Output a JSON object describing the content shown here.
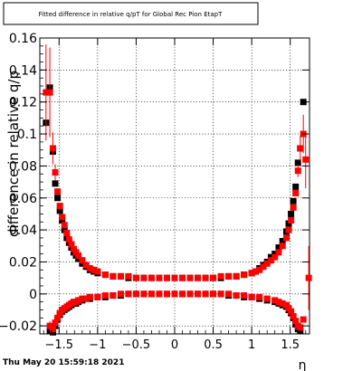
{
  "header": {
    "title": "Fitted difference in relative q/pT for Global Rec Pion EtapT"
  },
  "footer": {
    "timestamp": "Thu May 20 15:59:18 2021"
  },
  "chart_data": {
    "type": "scatter",
    "title": "Fitted difference in relative q/pT for Global Rec Pion EtapT",
    "xlabel": "η",
    "ylabel": "difference in relative q/p",
    "xlim": [
      -1.75,
      1.75
    ],
    "ylim": [
      -0.025,
      0.16
    ],
    "grid": true,
    "x_ticks": [
      {
        "value": -1.5,
        "label": "−1.5"
      },
      {
        "value": -1.0,
        "label": "−1"
      },
      {
        "value": -0.5,
        "label": "−0.5"
      },
      {
        "value": 0.0,
        "label": "0"
      },
      {
        "value": 0.5,
        "label": "0.5"
      },
      {
        "value": 1.0,
        "label": "1"
      },
      {
        "value": 1.5,
        "label": "1.5"
      }
    ],
    "y_ticks": [
      {
        "value": -0.02,
        "label": "−0.02"
      },
      {
        "value": 0.0,
        "label": "0"
      },
      {
        "value": 0.02,
        "label": "0.02"
      },
      {
        "value": 0.04,
        "label": "0.04"
      },
      {
        "value": 0.06,
        "label": "0.06"
      },
      {
        "value": 0.08,
        "label": "0.08"
      },
      {
        "value": 0.1,
        "label": "0.1"
      },
      {
        "value": 0.12,
        "label": "0.12"
      },
      {
        "value": 0.14,
        "label": "0.14"
      },
      {
        "value": 0.16,
        "label": "0.16"
      }
    ],
    "series": [
      {
        "color": "#000000",
        "points": [
          {
            "x": -1.67,
            "y": 0.107
          },
          {
            "x": -1.62,
            "y": 0.129
          },
          {
            "x": -1.58,
            "y": 0.089
          },
          {
            "x": -1.55,
            "y": 0.069
          },
          {
            "x": -1.52,
            "y": 0.06
          },
          {
            "x": -1.49,
            "y": 0.052
          },
          {
            "x": -1.46,
            "y": 0.046
          },
          {
            "x": -1.43,
            "y": 0.04
          },
          {
            "x": -1.4,
            "y": 0.035
          },
          {
            "x": -1.37,
            "y": 0.032
          },
          {
            "x": -1.34,
            "y": 0.029
          },
          {
            "x": -1.31,
            "y": 0.026
          },
          {
            "x": -1.28,
            "y": 0.024
          },
          {
            "x": -1.25,
            "y": 0.022
          },
          {
            "x": -1.2,
            "y": 0.019
          },
          {
            "x": -1.15,
            "y": 0.017
          },
          {
            "x": -1.1,
            "y": 0.015
          },
          {
            "x": -1.05,
            "y": 0.014
          },
          {
            "x": -1.0,
            "y": 0.013
          },
          {
            "x": -0.9,
            "y": 0.012
          },
          {
            "x": -0.8,
            "y": 0.011
          },
          {
            "x": -0.7,
            "y": 0.011
          },
          {
            "x": -0.6,
            "y": 0.01
          },
          {
            "x": -0.5,
            "y": 0.01
          },
          {
            "x": -0.4,
            "y": 0.01
          },
          {
            "x": -0.3,
            "y": 0.01
          },
          {
            "x": -0.2,
            "y": 0.01
          },
          {
            "x": -0.1,
            "y": 0.01
          },
          {
            "x": 0.0,
            "y": 0.01
          },
          {
            "x": 0.1,
            "y": 0.01
          },
          {
            "x": 0.2,
            "y": 0.01
          },
          {
            "x": 0.3,
            "y": 0.01
          },
          {
            "x": 0.4,
            "y": 0.01
          },
          {
            "x": 0.5,
            "y": 0.01
          },
          {
            "x": 0.6,
            "y": 0.01
          },
          {
            "x": 0.7,
            "y": 0.011
          },
          {
            "x": 0.8,
            "y": 0.011
          },
          {
            "x": 0.9,
            "y": 0.012
          },
          {
            "x": 1.0,
            "y": 0.013
          },
          {
            "x": 1.05,
            "y": 0.014
          },
          {
            "x": 1.1,
            "y": 0.016
          },
          {
            "x": 1.15,
            "y": 0.018
          },
          {
            "x": 1.2,
            "y": 0.02
          },
          {
            "x": 1.25,
            "y": 0.023
          },
          {
            "x": 1.3,
            "y": 0.025
          },
          {
            "x": 1.35,
            "y": 0.029
          },
          {
            "x": 1.4,
            "y": 0.033
          },
          {
            "x": 1.45,
            "y": 0.039
          },
          {
            "x": 1.48,
            "y": 0.044
          },
          {
            "x": 1.51,
            "y": 0.05
          },
          {
            "x": 1.54,
            "y": 0.058
          },
          {
            "x": 1.57,
            "y": 0.067
          },
          {
            "x": 1.6,
            "y": 0.082
          },
          {
            "x": 1.63,
            "y": 0.091
          },
          {
            "x": 1.67,
            "y": 0.12
          },
          {
            "x": -1.62,
            "y": -0.023
          },
          {
            "x": -1.58,
            "y": -0.024
          },
          {
            "x": -1.55,
            "y": -0.02
          },
          {
            "x": -1.52,
            "y": -0.016
          },
          {
            "x": -1.49,
            "y": -0.013
          },
          {
            "x": -1.46,
            "y": -0.011
          },
          {
            "x": -1.43,
            "y": -0.01
          },
          {
            "x": -1.4,
            "y": -0.009
          },
          {
            "x": -1.37,
            "y": -0.008
          },
          {
            "x": -1.34,
            "y": -0.007
          },
          {
            "x": -1.31,
            "y": -0.006
          },
          {
            "x": -1.28,
            "y": -0.006
          },
          {
            "x": -1.25,
            "y": -0.005
          },
          {
            "x": -1.2,
            "y": -0.004
          },
          {
            "x": -1.15,
            "y": -0.003
          },
          {
            "x": -1.1,
            "y": -0.003
          },
          {
            "x": -1.0,
            "y": -0.002
          },
          {
            "x": -0.9,
            "y": -0.002
          },
          {
            "x": -0.8,
            "y": -0.001
          },
          {
            "x": -0.7,
            "y": -0.001
          },
          {
            "x": -0.6,
            "y": 0.0
          },
          {
            "x": -0.5,
            "y": 0.0
          },
          {
            "x": -0.4,
            "y": 0.0
          },
          {
            "x": -0.3,
            "y": 0.0
          },
          {
            "x": -0.2,
            "y": 0.0
          },
          {
            "x": -0.1,
            "y": 0.0
          },
          {
            "x": 0.0,
            "y": 0.0
          },
          {
            "x": 0.1,
            "y": 0.0
          },
          {
            "x": 0.2,
            "y": 0.0
          },
          {
            "x": 0.3,
            "y": 0.0
          },
          {
            "x": 0.4,
            "y": 0.0
          },
          {
            "x": 0.5,
            "y": 0.0
          },
          {
            "x": 0.6,
            "y": 0.0
          },
          {
            "x": 0.7,
            "y": -0.001
          },
          {
            "x": 0.8,
            "y": -0.001
          },
          {
            "x": 0.9,
            "y": -0.002
          },
          {
            "x": 1.0,
            "y": -0.002
          },
          {
            "x": 1.1,
            "y": -0.003
          },
          {
            "x": 1.2,
            "y": -0.004
          },
          {
            "x": 1.3,
            "y": -0.005
          },
          {
            "x": 1.35,
            "y": -0.006
          },
          {
            "x": 1.4,
            "y": -0.007
          },
          {
            "x": 1.45,
            "y": -0.008
          },
          {
            "x": 1.48,
            "y": -0.01
          },
          {
            "x": 1.51,
            "y": -0.012
          },
          {
            "x": 1.54,
            "y": -0.015
          },
          {
            "x": 1.57,
            "y": -0.019
          },
          {
            "x": 1.6,
            "y": -0.022
          },
          {
            "x": 1.63,
            "y": -0.023
          }
        ]
      },
      {
        "color": "#ff0000",
        "points": [
          {
            "x": -1.67,
            "y": 0.126,
            "err": 0.03
          },
          {
            "x": -1.62,
            "y": 0.126,
            "err": 0.028
          },
          {
            "x": -1.58,
            "y": 0.091,
            "err": 0.01
          },
          {
            "x": -1.55,
            "y": 0.076,
            "err": 0.005
          },
          {
            "x": -1.52,
            "y": 0.064
          },
          {
            "x": -1.49,
            "y": 0.055
          },
          {
            "x": -1.46,
            "y": 0.048
          },
          {
            "x": -1.43,
            "y": 0.043
          },
          {
            "x": -1.4,
            "y": 0.038
          },
          {
            "x": -1.37,
            "y": 0.034
          },
          {
            "x": -1.34,
            "y": 0.031
          },
          {
            "x": -1.31,
            "y": 0.028
          },
          {
            "x": -1.28,
            "y": 0.026
          },
          {
            "x": -1.25,
            "y": 0.024
          },
          {
            "x": -1.2,
            "y": 0.021
          },
          {
            "x": -1.15,
            "y": 0.018
          },
          {
            "x": -1.1,
            "y": 0.016
          },
          {
            "x": -1.05,
            "y": 0.015
          },
          {
            "x": -1.0,
            "y": 0.014
          },
          {
            "x": -0.9,
            "y": 0.012
          },
          {
            "x": -0.8,
            "y": 0.011
          },
          {
            "x": -0.7,
            "y": 0.011
          },
          {
            "x": -0.6,
            "y": 0.011
          },
          {
            "x": -0.5,
            "y": 0.01
          },
          {
            "x": -0.4,
            "y": 0.01
          },
          {
            "x": -0.3,
            "y": 0.01
          },
          {
            "x": -0.2,
            "y": 0.01
          },
          {
            "x": -0.1,
            "y": 0.01
          },
          {
            "x": 0.0,
            "y": 0.01
          },
          {
            "x": 0.1,
            "y": 0.01
          },
          {
            "x": 0.2,
            "y": 0.01
          },
          {
            "x": 0.3,
            "y": 0.01
          },
          {
            "x": 0.4,
            "y": 0.01
          },
          {
            "x": 0.5,
            "y": 0.01
          },
          {
            "x": 0.6,
            "y": 0.011
          },
          {
            "x": 0.7,
            "y": 0.011
          },
          {
            "x": 0.8,
            "y": 0.011
          },
          {
            "x": 0.9,
            "y": 0.012
          },
          {
            "x": 1.0,
            "y": 0.013
          },
          {
            "x": 1.05,
            "y": 0.014
          },
          {
            "x": 1.1,
            "y": 0.015
          },
          {
            "x": 1.15,
            "y": 0.017
          },
          {
            "x": 1.2,
            "y": 0.019
          },
          {
            "x": 1.25,
            "y": 0.021
          },
          {
            "x": 1.3,
            "y": 0.023
          },
          {
            "x": 1.35,
            "y": 0.026
          },
          {
            "x": 1.4,
            "y": 0.03
          },
          {
            "x": 1.45,
            "y": 0.035
          },
          {
            "x": 1.48,
            "y": 0.04
          },
          {
            "x": 1.51,
            "y": 0.046
          },
          {
            "x": 1.54,
            "y": 0.054
          },
          {
            "x": 1.57,
            "y": 0.063
          },
          {
            "x": 1.6,
            "y": 0.077,
            "err": 0.004
          },
          {
            "x": 1.63,
            "y": 0.091,
            "err": 0.008
          },
          {
            "x": 1.67,
            "y": 0.1,
            "err": 0.012
          },
          {
            "x": 1.7,
            "y": 0.084,
            "err": 0.018
          },
          {
            "x": 1.74,
            "y": 0.01,
            "err": 0.02
          },
          {
            "x": -1.62,
            "y": -0.02,
            "err": 0.003
          },
          {
            "x": -1.58,
            "y": -0.022
          },
          {
            "x": -1.55,
            "y": -0.018
          },
          {
            "x": -1.52,
            "y": -0.015
          },
          {
            "x": -1.49,
            "y": -0.012
          },
          {
            "x": -1.46,
            "y": -0.01
          },
          {
            "x": -1.43,
            "y": -0.009
          },
          {
            "x": -1.4,
            "y": -0.008
          },
          {
            "x": -1.37,
            "y": -0.007
          },
          {
            "x": -1.34,
            "y": -0.006
          },
          {
            "x": -1.31,
            "y": -0.005
          },
          {
            "x": -1.28,
            "y": -0.005
          },
          {
            "x": -1.25,
            "y": -0.004
          },
          {
            "x": -1.2,
            "y": -0.003
          },
          {
            "x": -1.15,
            "y": -0.003
          },
          {
            "x": -1.1,
            "y": -0.002
          },
          {
            "x": -1.0,
            "y": -0.002
          },
          {
            "x": -0.9,
            "y": -0.001
          },
          {
            "x": -0.8,
            "y": -0.001
          },
          {
            "x": -0.7,
            "y": 0.0
          },
          {
            "x": -0.6,
            "y": 0.0
          },
          {
            "x": -0.5,
            "y": 0.0
          },
          {
            "x": -0.4,
            "y": 0.0
          },
          {
            "x": -0.3,
            "y": 0.0
          },
          {
            "x": -0.2,
            "y": 0.0
          },
          {
            "x": -0.1,
            "y": 0.0
          },
          {
            "x": 0.0,
            "y": 0.0
          },
          {
            "x": 0.1,
            "y": 0.0
          },
          {
            "x": 0.2,
            "y": 0.0
          },
          {
            "x": 0.3,
            "y": 0.0
          },
          {
            "x": 0.4,
            "y": 0.0
          },
          {
            "x": 0.5,
            "y": 0.0
          },
          {
            "x": 0.6,
            "y": 0.0
          },
          {
            "x": 0.7,
            "y": 0.0
          },
          {
            "x": 0.8,
            "y": -0.001
          },
          {
            "x": 0.9,
            "y": -0.001
          },
          {
            "x": 1.0,
            "y": -0.002
          },
          {
            "x": 1.1,
            "y": -0.002
          },
          {
            "x": 1.2,
            "y": -0.003
          },
          {
            "x": 1.3,
            "y": -0.004
          },
          {
            "x": 1.35,
            "y": -0.005
          },
          {
            "x": 1.4,
            "y": -0.006
          },
          {
            "x": 1.45,
            "y": -0.007
          },
          {
            "x": 1.48,
            "y": -0.009
          },
          {
            "x": 1.51,
            "y": -0.011
          },
          {
            "x": 1.54,
            "y": -0.014
          },
          {
            "x": 1.57,
            "y": -0.017
          },
          {
            "x": 1.6,
            "y": -0.02
          },
          {
            "x": 1.63,
            "y": -0.021
          },
          {
            "x": 1.67,
            "y": -0.016
          }
        ]
      }
    ]
  }
}
